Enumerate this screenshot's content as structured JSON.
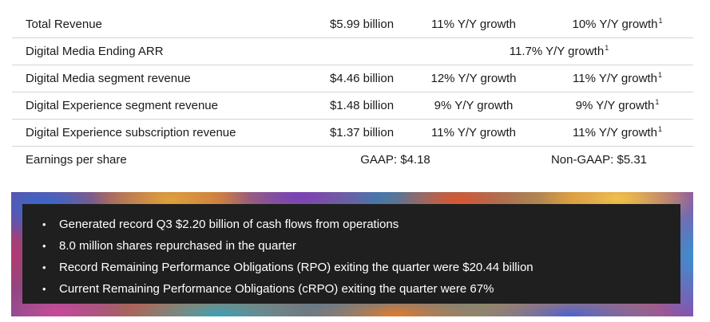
{
  "metrics": {
    "rows": [
      {
        "label": "Total Revenue",
        "value": "$5.99 billion",
        "growth1": "11% Y/Y growth",
        "growth2": "10% Y/Y growth",
        "footnote2": "1"
      },
      {
        "label": "Digital Media Ending ARR",
        "span": "11.7% Y/Y growth",
        "footnote_span": "1"
      },
      {
        "label": "Digital Media segment revenue",
        "value": "$4.46 billion",
        "growth1": "12% Y/Y growth",
        "growth2": "11% Y/Y growth",
        "footnote2": "1"
      },
      {
        "label": "Digital Experience segment revenue",
        "value": "$1.48 billion",
        "growth1": "9% Y/Y growth",
        "growth2": "9% Y/Y growth",
        "footnote2": "1"
      },
      {
        "label": "Digital Experience subscription revenue",
        "value": "$1.37 billion",
        "growth1": "11% Y/Y growth",
        "growth2": "11% Y/Y growth",
        "footnote2": "1"
      },
      {
        "label": "Earnings per share",
        "gaap": "GAAP: $4.18",
        "nongaap": "Non-GAAP: $5.31"
      }
    ]
  },
  "highlights": {
    "bullet_glyph": "•",
    "items": [
      "Generated record Q3 $2.20 billion of cash flows from operations",
      "8.0 million shares repurchased in the quarter",
      "Record Remaining Performance Obligations (RPO) exiting the quarter were $20.44 billion",
      "Current Remaining Performance Obligations (cRPO) exiting the quarter were 67%"
    ]
  }
}
